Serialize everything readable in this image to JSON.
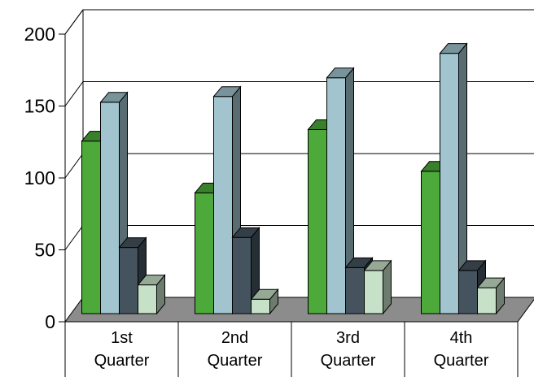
{
  "chart_data": {
    "type": "bar",
    "style": "3d-clustered-column",
    "title": "",
    "xlabel": "",
    "ylabel": "",
    "ylim": [
      0,
      200
    ],
    "yticks": [
      0,
      50,
      100,
      150,
      200
    ],
    "grid": true,
    "legend": "none",
    "categories": [
      [
        "1st",
        "Quarter"
      ],
      [
        "2nd",
        "Quarter"
      ],
      [
        "3rd",
        "Quarter"
      ],
      [
        "4th",
        "Quarter"
      ]
    ],
    "series": [
      {
        "color": "#4ca93a",
        "values": [
          120,
          84,
          128,
          99
        ]
      },
      {
        "color": "#a1c4cf",
        "values": [
          147,
          151,
          164,
          181
        ]
      },
      {
        "color": "#44535e",
        "values": [
          46,
          53,
          32,
          30
        ]
      },
      {
        "color": "#c6e1c8",
        "values": [
          20,
          10,
          30,
          18
        ]
      }
    ]
  }
}
